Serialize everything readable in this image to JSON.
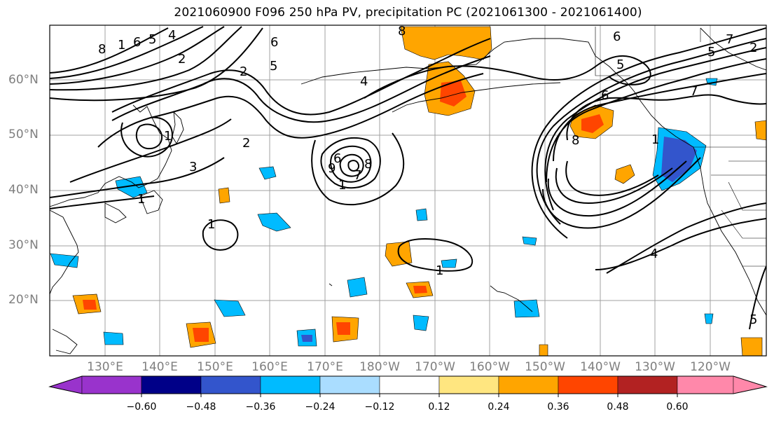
{
  "title": "2021060900 F096 250 hPa PV, precipitation PC (2021061300 - 2021061400)",
  "lat_labels": [
    "60°N",
    "50°N",
    "40°N",
    "30°N",
    "20°N"
  ],
  "lon_labels": [
    "130°E",
    "140°E",
    "150°E",
    "160°E",
    "170°E",
    "180°W",
    "170°W",
    "160°W",
    "150°W",
    "140°W",
    "130°W",
    "120°W"
  ],
  "colorbar": {
    "colors": [
      "#9933cc",
      "#000088",
      "#3355cc",
      "#00bbff",
      "#aaddff",
      "#ffffff",
      "#ffe680",
      "#ffa500",
      "#ff4500",
      "#b22222",
      "#ff88aa"
    ],
    "tick_labels": [
      "−0.60",
      "−0.48",
      "−0.36",
      "−0.24",
      "−0.12",
      "0.12",
      "0.24",
      "0.36",
      "0.48",
      "0.60"
    ]
  },
  "contour_labels": [
    "8",
    "1",
    "6",
    "5",
    "4",
    "2",
    "6",
    "8",
    "5",
    "2",
    "4",
    "6",
    "5",
    "7",
    "6",
    "5",
    "7",
    "2",
    "2",
    "3",
    "1",
    "1",
    "1",
    "9",
    "7",
    "1",
    "8",
    "6",
    "8",
    "1",
    "4",
    "1",
    "5"
  ]
}
